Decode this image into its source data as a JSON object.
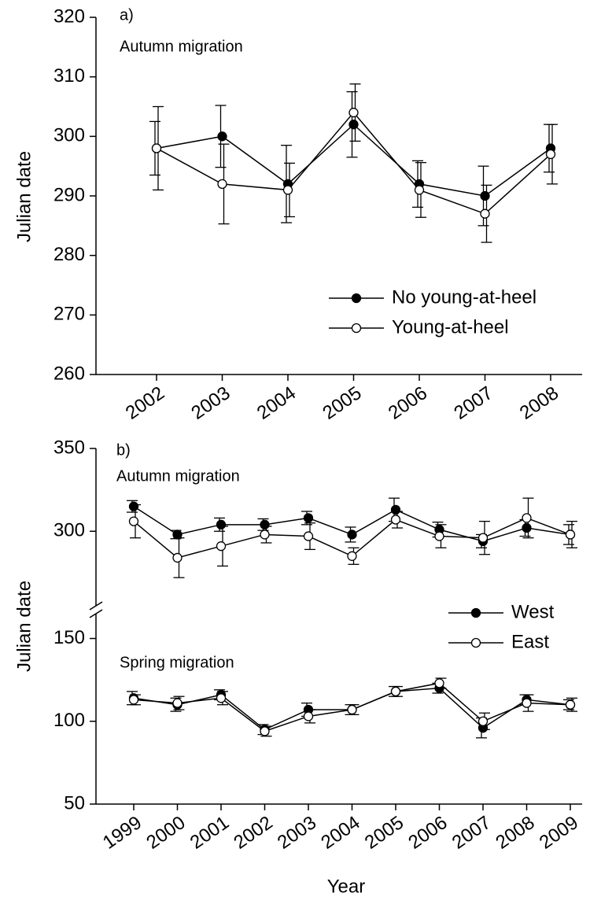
{
  "chart_data": [
    {
      "type": "line",
      "panel_label": "a)",
      "annotation": "Autumn migration",
      "ylabel": "Julian date",
      "categories": [
        "2002",
        "2003",
        "2004",
        "2005",
        "2006",
        "2007",
        "2008"
      ],
      "ylim": [
        260,
        320
      ],
      "yticks": [
        260,
        270,
        280,
        290,
        300,
        310,
        320
      ],
      "legend": "lower right",
      "series": [
        {
          "name": "No young-at-heel",
          "color": "#000000",
          "marker_fill": "#000000",
          "values": [
            298,
            300,
            292,
            302,
            292,
            290,
            298
          ],
          "errors": [
            4.5,
            5.2,
            6.5,
            5.5,
            3.9,
            5,
            4
          ]
        },
        {
          "name": "Young-at-heel",
          "color": "#000000",
          "marker_fill": "#ffffff",
          "values": [
            298,
            292,
            291,
            304,
            291,
            287,
            297
          ],
          "errors": [
            7,
            6.7,
            4.5,
            4.8,
            4.6,
            4.8,
            5
          ]
        }
      ]
    },
    {
      "type": "line",
      "panel_label": "b)",
      "annotations": [
        "Autumn migration",
        "Spring migration"
      ],
      "ylabel": "Julian date",
      "xlabel": "Year",
      "categories": [
        "1999",
        "2000",
        "2001",
        "2002",
        "2003",
        "2004",
        "2005",
        "2006",
        "2007",
        "2008",
        "2009"
      ],
      "ylim": [
        50,
        350
      ],
      "ybreak": [
        165,
        255
      ],
      "yticks": [
        50,
        100,
        150,
        300,
        350
      ],
      "legend": "right",
      "series": [
        {
          "name": "West",
          "color": "#000000",
          "marker_fill": "#000000",
          "autumn": {
            "values": [
              315,
              298,
              304,
              304,
              308,
              298,
              313,
              301,
              294,
              302,
              298
            ],
            "errors": [
              3.5,
              2.5,
              4,
              3.5,
              4,
              4.5,
              7,
              4.5,
              4,
              5,
              6
            ]
          },
          "spring": {
            "values": [
              114,
              110,
              116,
              95,
              107,
              107,
              118,
              120,
              96,
              113,
              110
            ],
            "errors": [
              4,
              4,
              3,
              3,
              4,
              3,
              3,
              3,
              6,
              3,
              3
            ]
          }
        },
        {
          "name": "East",
          "color": "#000000",
          "marker_fill": "#ffffff",
          "autumn": {
            "values": [
              306,
              284,
              291,
              298,
              297,
              285,
              307,
              297,
              296,
              308,
              298
            ],
            "errors": [
              10,
              12,
              12,
              5,
              8,
              5,
              5,
              7,
              10,
              12,
              8
            ]
          },
          "spring": {
            "values": [
              113,
              111,
              114,
              94,
              103,
              107,
              118,
              123,
              100,
              111,
              110
            ],
            "errors": [
              3,
              4,
              4,
              3,
              4,
              3,
              3,
              3,
              5,
              5,
              4
            ]
          }
        }
      ]
    }
  ]
}
